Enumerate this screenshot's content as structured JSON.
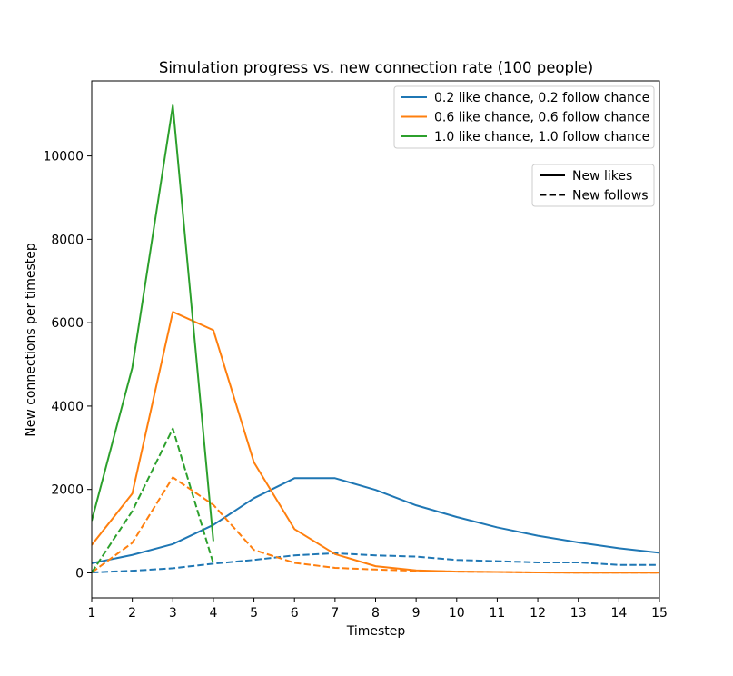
{
  "chart_data": {
    "type": "line",
    "title": "Simulation progress vs. new connection rate (100 people)",
    "xlabel": "Timestep",
    "ylabel": "New connections per timestep",
    "xlim": [
      1,
      15
    ],
    "ylim": [
      -600,
      11800
    ],
    "xticks": [
      1,
      2,
      3,
      4,
      5,
      6,
      7,
      8,
      9,
      10,
      11,
      12,
      13,
      14,
      15
    ],
    "yticks": [
      0,
      2000,
      4000,
      6000,
      8000,
      10000
    ],
    "grid": false,
    "legend_placement": "top-right",
    "colors": {
      "blue": "#1f77b4",
      "orange": "#ff7f0e",
      "green": "#2ca02c",
      "black": "#000000"
    },
    "series": [
      {
        "name": "0.2 like chance, 0.2 follow chance",
        "color": "#1f77b4",
        "likes": {
          "x": [
            1,
            2,
            3,
            4,
            5,
            6,
            7,
            8,
            9,
            10,
            11,
            12,
            13,
            14,
            15
          ],
          "y": [
            230,
            430,
            690,
            1150,
            1790,
            2270,
            2270,
            1990,
            1620,
            1340,
            1090,
            890,
            730,
            590,
            480
          ]
        },
        "follows": {
          "x": [
            1,
            2,
            3,
            4,
            5,
            6,
            7,
            8,
            9,
            10,
            11,
            12,
            13,
            14,
            15
          ],
          "y": [
            10,
            50,
            110,
            220,
            310,
            420,
            470,
            420,
            390,
            310,
            280,
            250,
            250,
            190,
            190
          ]
        }
      },
      {
        "name": "0.6 like chance, 0.6 follow chance",
        "color": "#ff7f0e",
        "likes": {
          "x": [
            1,
            2,
            3,
            4,
            5,
            6,
            7,
            8,
            9,
            10,
            11,
            12,
            13,
            14,
            15
          ],
          "y": [
            670,
            1900,
            6260,
            5820,
            2650,
            1050,
            450,
            160,
            60,
            30,
            20,
            10,
            5,
            5,
            5
          ]
        },
        "follows": {
          "x": [
            1,
            2,
            3,
            4,
            5,
            6,
            7,
            8,
            9,
            10,
            11,
            12,
            13,
            14,
            15
          ],
          "y": [
            10,
            720,
            2290,
            1630,
            550,
            240,
            120,
            80,
            50,
            30,
            20,
            10,
            5,
            5,
            5
          ]
        }
      },
      {
        "name": "1.0 like chance, 1.0 follow chance",
        "color": "#2ca02c",
        "likes": {
          "x": [
            1,
            2,
            3,
            4
          ],
          "y": [
            1250,
            4920,
            11210,
            760
          ]
        },
        "follows": {
          "x": [
            1,
            2,
            3,
            4
          ],
          "y": [
            10,
            1480,
            3460,
            220
          ]
        }
      }
    ],
    "style_legend": [
      {
        "label": "New likes",
        "dash": "solid"
      },
      {
        "label": "New follows",
        "dash": "dashed"
      }
    ]
  }
}
